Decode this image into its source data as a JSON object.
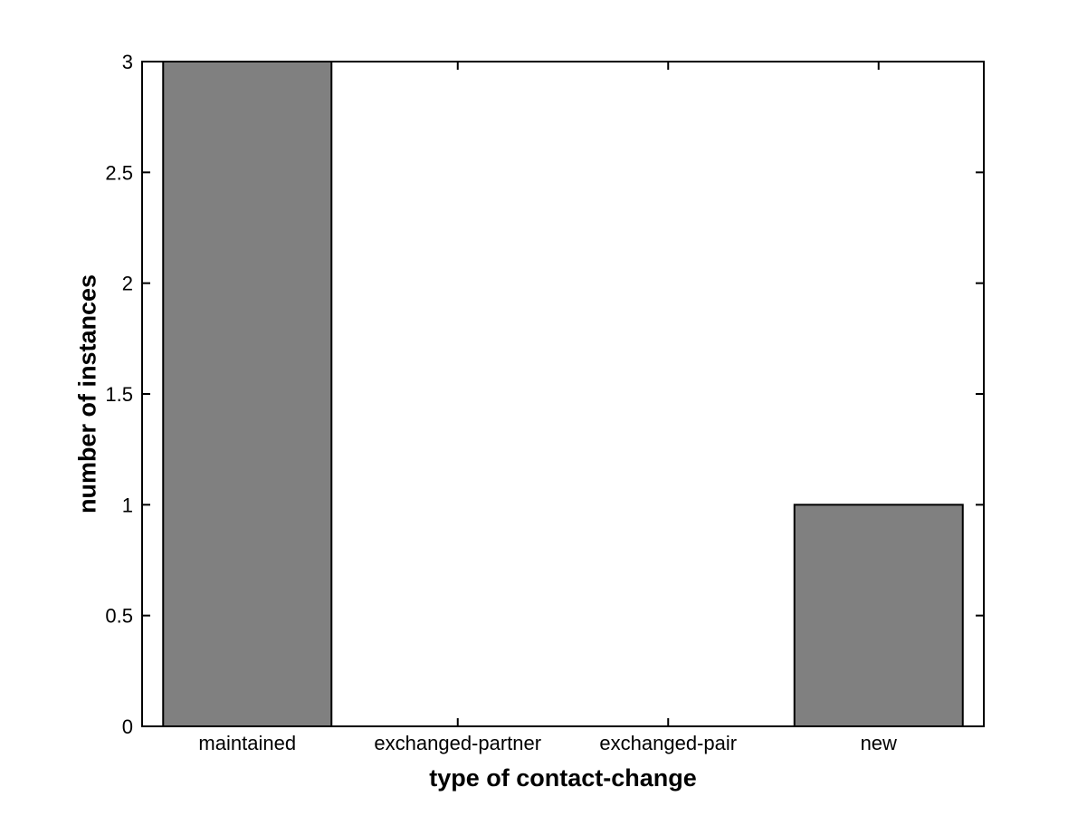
{
  "figure": {
    "background_color": "#ffffff"
  },
  "chart_data": {
    "type": "bar",
    "title": "",
    "categories": [
      "maintained",
      "exchanged-partner",
      "exchanged-pair",
      "new"
    ],
    "values": [
      3,
      0,
      0,
      1
    ],
    "xlabel": "type of contact-change",
    "ylabel": "number of instances",
    "ylim": [
      0,
      3
    ],
    "yticks": [
      0,
      0.5,
      1,
      1.5,
      2,
      2.5,
      3
    ],
    "ytick_labels": [
      "0",
      "0.5",
      "1",
      "1.5",
      "2",
      "2.5",
      "3"
    ],
    "bar_width_ratio": 0.8,
    "bar_color": "#808080",
    "bar_edge_color": "#000000",
    "axis_color": "#000000",
    "grid": false,
    "legend_position": "none",
    "tick_direction": "in"
  }
}
